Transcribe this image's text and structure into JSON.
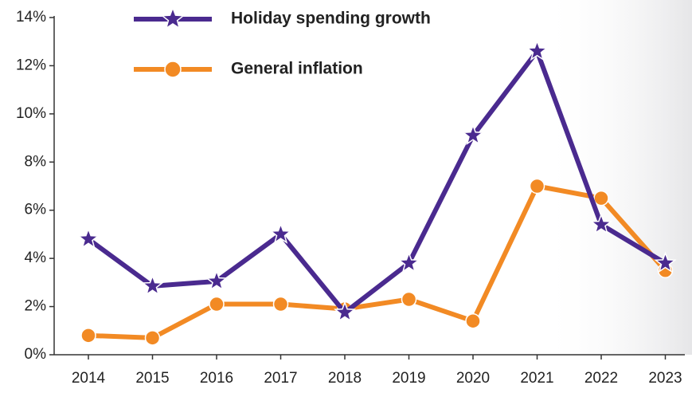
{
  "chart_data": {
    "type": "line",
    "categories": [
      "2014",
      "2015",
      "2016",
      "2017",
      "2018",
      "2019",
      "2020",
      "2021",
      "2022",
      "2023"
    ],
    "series": [
      {
        "name": "Holiday spending growth",
        "color": "#4a2a8f",
        "marker": "star",
        "values": [
          4.8,
          2.85,
          3.05,
          5.0,
          1.75,
          3.8,
          9.1,
          12.6,
          5.4,
          3.8
        ]
      },
      {
        "name": "General inflation",
        "color": "#f28a24",
        "marker": "circle",
        "values": [
          0.8,
          0.7,
          2.1,
          2.1,
          1.9,
          2.3,
          1.4,
          7.0,
          6.5,
          3.5
        ]
      }
    ],
    "ylim": [
      0,
      14
    ],
    "yticks": [
      {
        "value": 0,
        "label": "0%"
      },
      {
        "value": 2,
        "label": "2%"
      },
      {
        "value": 4,
        "label": "4%"
      },
      {
        "value": 6,
        "label": "6%"
      },
      {
        "value": 8,
        "label": "8%"
      },
      {
        "value": 10,
        "label": "10%"
      },
      {
        "value": 12,
        "label": "12%"
      },
      {
        "value": 14,
        "label": "14%"
      }
    ],
    "grid": false
  }
}
